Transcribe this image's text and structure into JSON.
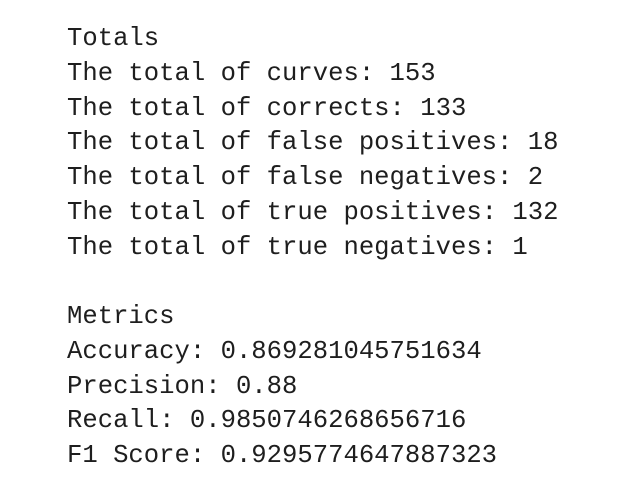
{
  "sections": [
    {
      "title": "Totals",
      "lines": [
        "The total of curves: 153",
        "The total of corrects: 133",
        "The total of false positives: 18",
        "The total of false negatives: 2",
        "The total of true positives: 132",
        "The total of true negatives: 1"
      ]
    },
    {
      "title": "Metrics",
      "lines": [
        "Accuracy: 0.869281045751634",
        "Precision: 0.88",
        "Recall: 0.9850746268656716",
        "F1 Score: 0.9295774647887323"
      ]
    }
  ]
}
